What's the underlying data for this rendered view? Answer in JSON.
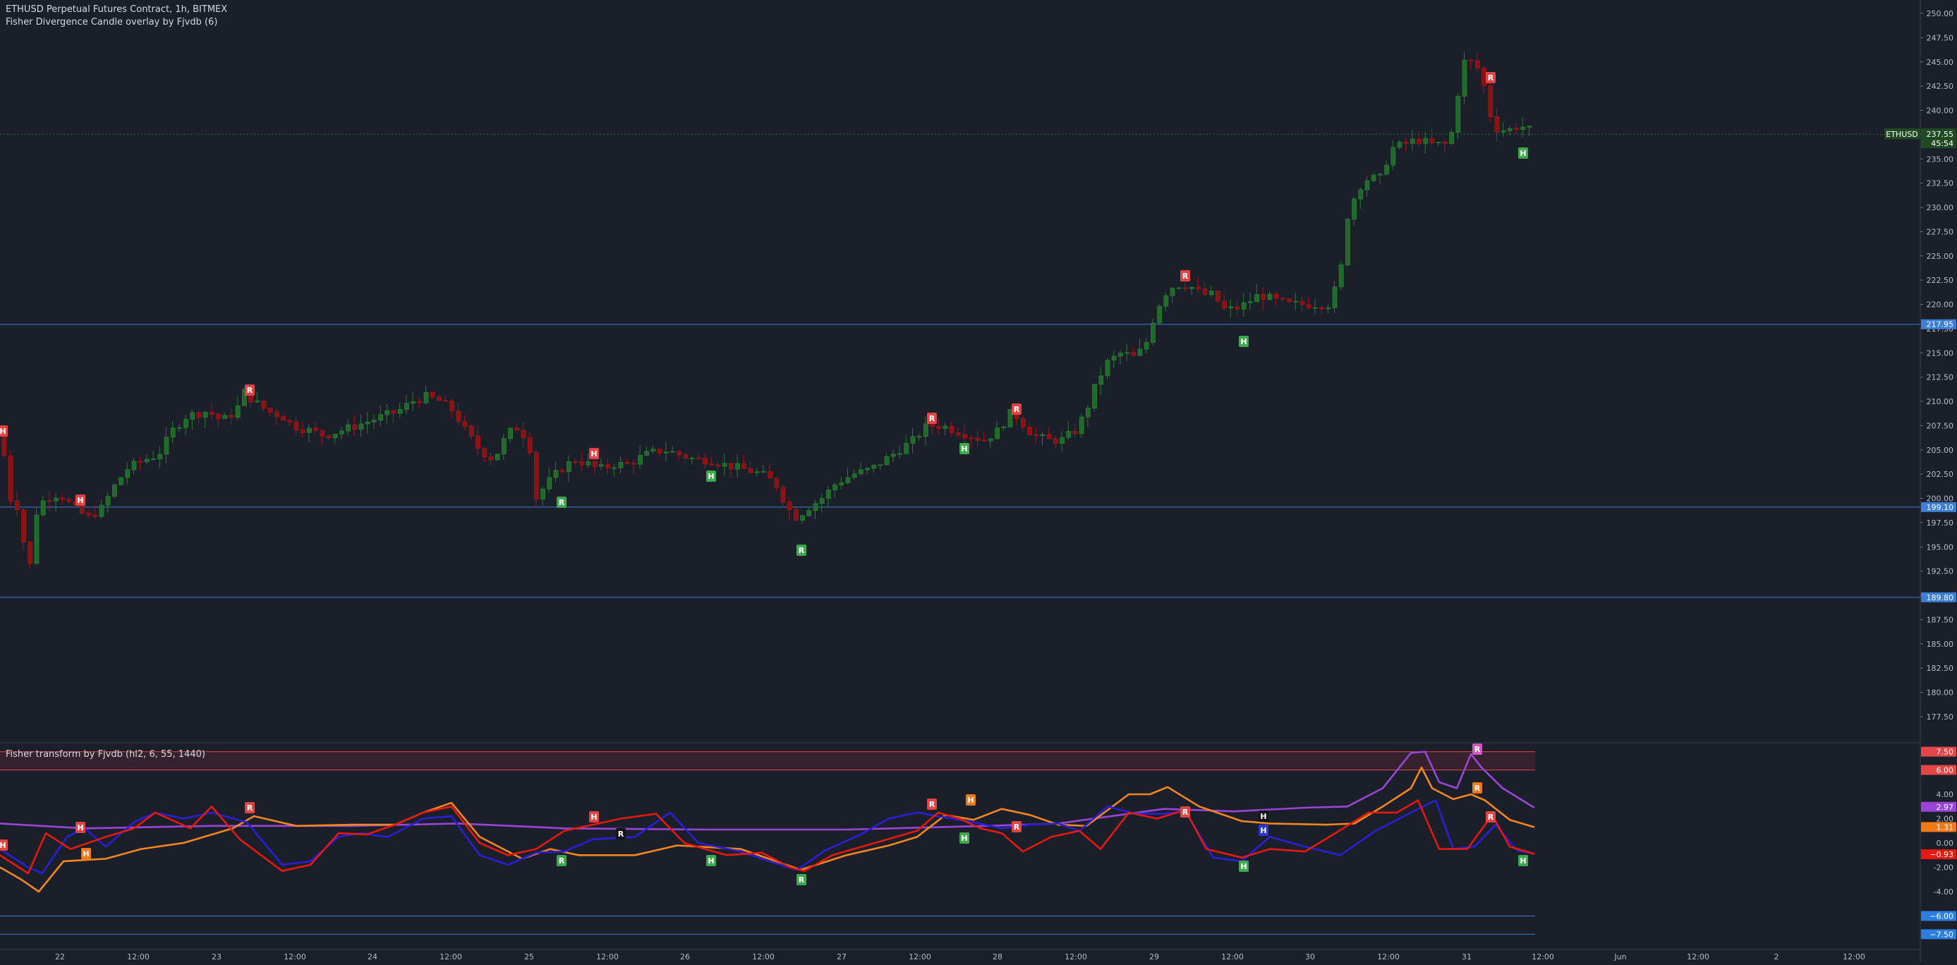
{
  "header": {
    "symbol_line": "ETHUSD Perpetual Futures Contract, 1h, BITMEX",
    "study_line": "Fisher Divergence Candle overlay by Fjvdb (6)"
  },
  "oscillator_header": "Fisher transform by Fjvdb (hl2, 6, 55, 1440)",
  "colors": {
    "background": "#1b1f2a",
    "up_candle": "#1f6b2a",
    "down_candle": "#8a1212",
    "fisher_fast": "#e5190f",
    "fisher_slow": "#2a1fd8",
    "fisher_trigger": "#f4861f",
    "fisher_long": "#9a45d8",
    "h_line": "#3d7fd6",
    "band_red": "#e24646",
    "label_green": "#3fa84e",
    "label_red": "#e04545",
    "label_orange": "#f07a18"
  },
  "price_axis": {
    "ticks": [
      "250.00",
      "247.50",
      "245.00",
      "242.50",
      "240.00",
      "237.50",
      "235.00",
      "232.50",
      "230.00",
      "227.50",
      "225.00",
      "222.50",
      "220.00",
      "217.50",
      "215.00",
      "212.50",
      "210.00",
      "207.50",
      "205.00",
      "202.50",
      "200.00",
      "197.50",
      "195.00",
      "192.50",
      "190.00",
      "187.50",
      "185.00",
      "182.50",
      "180.00",
      "177.50"
    ]
  },
  "price_markers": {
    "last": {
      "symbol": "ETHUSD",
      "price": "237.55",
      "countdown": "45:54"
    },
    "levels": [
      "217.95",
      "199.10",
      "189.80"
    ]
  },
  "osc_axis": {
    "ticks": [
      "4.00",
      "2.00",
      "0.00",
      "-2.00",
      "-4.00"
    ],
    "markers": [
      "7.50",
      "6.00",
      "2.97",
      "1.31",
      "-0.93",
      "-6.00",
      "-7.50"
    ]
  },
  "time_axis": {
    "labels": [
      "22",
      "12:00",
      "23",
      "12:00",
      "24",
      "12:00",
      "25",
      "12:00",
      "26",
      "12:00",
      "27",
      "12:00",
      "28",
      "12:00",
      "29",
      "12:00",
      "30",
      "12:00",
      "31",
      "12:00",
      "Jun",
      "12:00",
      "2",
      "12:00"
    ]
  },
  "price_signals": [
    {
      "t": "H",
      "kind": "red"
    },
    {
      "t": "H",
      "kind": "red"
    },
    {
      "t": "R",
      "kind": "red"
    },
    {
      "t": "R",
      "kind": "green"
    },
    {
      "t": "H",
      "kind": "red"
    },
    {
      "t": "H",
      "kind": "green"
    },
    {
      "t": "R",
      "kind": "green"
    },
    {
      "t": "R",
      "kind": "red"
    },
    {
      "t": "H",
      "kind": "green"
    },
    {
      "t": "R",
      "kind": "red"
    },
    {
      "t": "R",
      "kind": "red"
    },
    {
      "t": "H",
      "kind": "green"
    },
    {
      "t": "R",
      "kind": "red"
    },
    {
      "t": "H",
      "kind": "green"
    }
  ],
  "osc_signals": [
    {
      "t": "H",
      "kind": "red"
    },
    {
      "t": "H",
      "kind": "red"
    },
    {
      "t": "H",
      "kind": "orange"
    },
    {
      "t": "R",
      "kind": "red"
    },
    {
      "t": "R",
      "kind": "green"
    },
    {
      "t": "H",
      "kind": "red"
    },
    {
      "t": "R",
      "kind": "black"
    },
    {
      "t": "H",
      "kind": "green"
    },
    {
      "t": "R",
      "kind": "green"
    },
    {
      "t": "R",
      "kind": "red"
    },
    {
      "t": "H",
      "kind": "orange"
    },
    {
      "t": "H",
      "kind": "green"
    },
    {
      "t": "R",
      "kind": "red"
    },
    {
      "t": "R",
      "kind": "red"
    },
    {
      "t": "H",
      "kind": "green"
    },
    {
      "t": "H",
      "kind": "black"
    },
    {
      "t": "H",
      "kind": "blue"
    },
    {
      "t": "R",
      "kind": "pink"
    },
    {
      "t": "R",
      "kind": "orange"
    },
    {
      "t": "R",
      "kind": "red"
    },
    {
      "t": "H",
      "kind": "green"
    }
  ]
}
